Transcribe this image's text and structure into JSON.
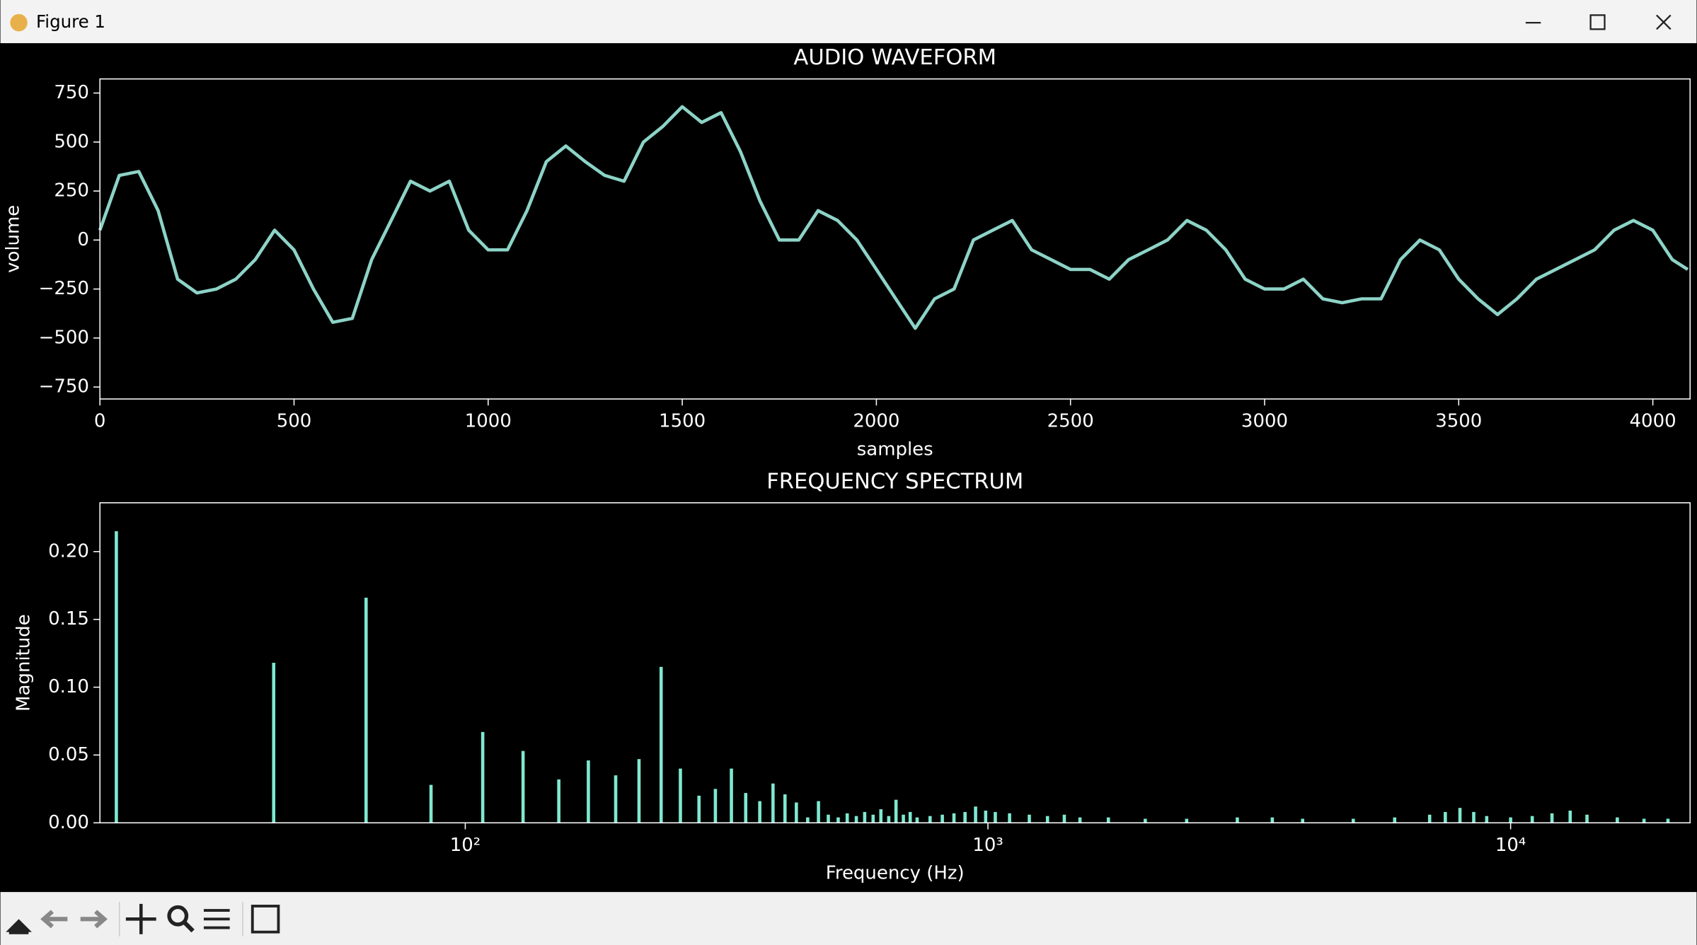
{
  "window": {
    "title": "Figure 1"
  },
  "chart_data": [
    {
      "type": "line",
      "title": "AUDIO WAVEFORM",
      "xlabel": "samples",
      "ylabel": "volume",
      "color": "#8dd3c7",
      "x": [
        0,
        50,
        100,
        150,
        200,
        250,
        300,
        350,
        400,
        450,
        500,
        550,
        600,
        650,
        700,
        750,
        800,
        850,
        900,
        950,
        1000,
        1050,
        1100,
        1150,
        1200,
        1250,
        1300,
        1350,
        1400,
        1450,
        1500,
        1550,
        1600,
        1650,
        1700,
        1750,
        1800,
        1850,
        1900,
        1950,
        2000,
        2050,
        2100,
        2150,
        2200,
        2250,
        2300,
        2350,
        2400,
        2450,
        2500,
        2550,
        2600,
        2650,
        2700,
        2750,
        2800,
        2850,
        2900,
        2950,
        3000,
        3050,
        3100,
        3150,
        3200,
        3250,
        3300,
        3350,
        3400,
        3450,
        3500,
        3550,
        3600,
        3650,
        3700,
        3750,
        3800,
        3850,
        3900,
        3950,
        4000,
        4050,
        4090
      ],
      "values": [
        50,
        330,
        350,
        150,
        -200,
        -270,
        -250,
        -200,
        -100,
        50,
        -50,
        -250,
        -420,
        -400,
        -100,
        100,
        300,
        250,
        300,
        50,
        -50,
        -50,
        150,
        400,
        480,
        400,
        330,
        300,
        500,
        580,
        680,
        600,
        650,
        450,
        200,
        0,
        0,
        150,
        100,
        0,
        -150,
        -300,
        -450,
        -300,
        -250,
        0,
        50,
        100,
        -50,
        -100,
        -150,
        -150,
        -200,
        -100,
        -50,
        0,
        100,
        50,
        -50,
        -200,
        -250,
        -250,
        -200,
        -300,
        -320,
        -300,
        -300,
        -100,
        0,
        -50,
        -200,
        -300,
        -380,
        -300,
        -200,
        -150,
        -100,
        -50,
        50,
        100,
        50,
        -100,
        -150
      ],
      "xlim": [
        0,
        4096
      ],
      "ylim": [
        -811,
        822
      ],
      "xticks": [
        0,
        500,
        1000,
        1500,
        2000,
        2500,
        3000,
        3500,
        4000
      ],
      "yticks": [
        {
          "value": -750,
          "label": "−750"
        },
        {
          "value": -500,
          "label": "−500"
        },
        {
          "value": -250,
          "label": "−250"
        },
        0,
        250,
        500,
        750
      ]
    },
    {
      "type": "bar",
      "title": "FREQUENCY SPECTRUM",
      "xlabel": "Frequency (Hz)",
      "ylabel": "Magnitude",
      "color": "#7fe8d0",
      "xscale": "log",
      "x": [
        21.5,
        43,
        64.6,
        86,
        108,
        129,
        151,
        172,
        194,
        215,
        237,
        258,
        280,
        301,
        323,
        344,
        366,
        388,
        409,
        430,
        452,
        474,
        495,
        517,
        538,
        560,
        581,
        603,
        624,
        646,
        667,
        689,
        710,
        732,
        775,
        818,
        861,
        904,
        947,
        990,
        1033,
        1100,
        1200,
        1300,
        1400,
        1500,
        1700,
        2000,
        2400,
        3000,
        3500,
        4000,
        5000,
        6000,
        7000,
        7500,
        8000,
        8500,
        9000,
        10000,
        11000,
        12000,
        13000,
        14000,
        16000,
        18000,
        20000
      ],
      "values": [
        0.215,
        0.118,
        0.166,
        0.028,
        0.067,
        0.053,
        0.032,
        0.046,
        0.035,
        0.047,
        0.115,
        0.04,
        0.02,
        0.025,
        0.04,
        0.022,
        0.016,
        0.029,
        0.021,
        0.015,
        0.004,
        0.016,
        0.006,
        0.004,
        0.007,
        0.005,
        0.008,
        0.006,
        0.01,
        0.005,
        0.017,
        0.006,
        0.008,
        0.004,
        0.005,
        0.006,
        0.007,
        0.008,
        0.012,
        0.009,
        0.008,
        0.007,
        0.006,
        0.005,
        0.006,
        0.004,
        0.004,
        0.003,
        0.003,
        0.004,
        0.004,
        0.003,
        0.003,
        0.004,
        0.006,
        0.008,
        0.011,
        0.008,
        0.005,
        0.004,
        0.005,
        0.007,
        0.009,
        0.006,
        0.004,
        0.003,
        0.003
      ],
      "xlim": [
        20,
        22050
      ],
      "ylim": [
        0,
        0.236
      ],
      "xticks": [
        {
          "value": 100,
          "label": "10²"
        },
        {
          "value": 1000,
          "label": "10³"
        },
        {
          "value": 10000,
          "label": "10⁴"
        }
      ],
      "yticks": [
        {
          "value": 0,
          "label": "0.00"
        },
        {
          "value": 0.05,
          "label": "0.05"
        },
        {
          "value": 0.1,
          "label": "0.10"
        },
        {
          "value": 0.15,
          "label": "0.15"
        },
        {
          "value": 0.2,
          "label": "0.20"
        }
      ]
    }
  ]
}
